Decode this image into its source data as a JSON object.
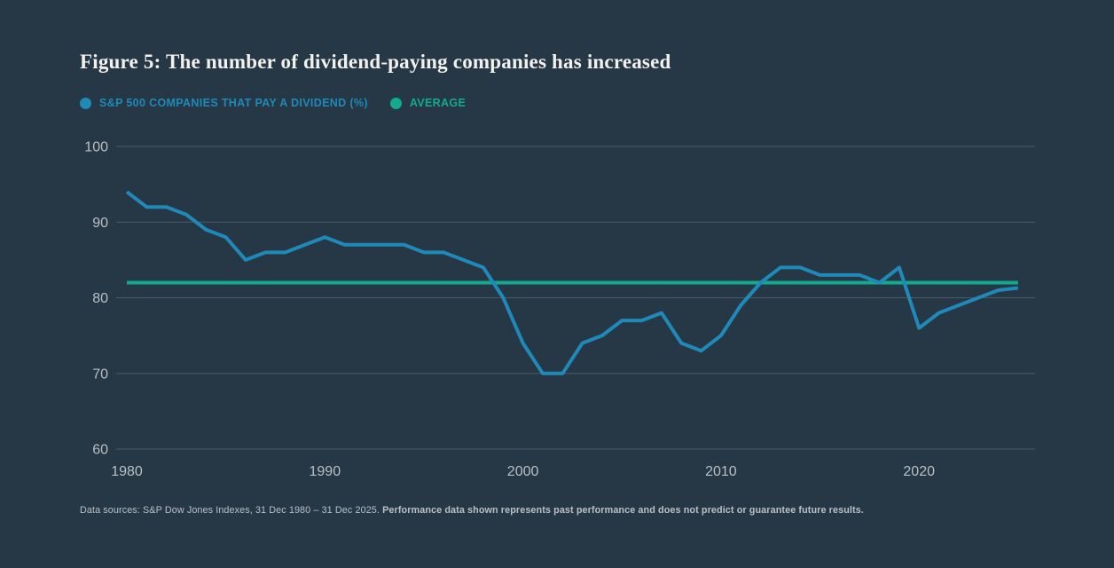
{
  "title": "Figure 5: The number of dividend-paying companies has increased",
  "legend": [
    {
      "label": "S&P 500 COMPANIES THAT PAY A DIVIDEND (%)",
      "color": "#1f8ab9"
    },
    {
      "label": "AVERAGE",
      "color": "#13ab8f"
    }
  ],
  "footer": {
    "normal": "Data sources: S&P Dow Jones Indexes, 31 Dec 1980 – 31 Dec 2025. ",
    "bold": "Performance data shown represents past performance and does not predict or guarantee future results."
  },
  "colors": {
    "background": "#263745",
    "grid": "#4c5a65",
    "tick_label": "#b9c0c4",
    "title": "#f2f1ed",
    "dividend_line": "#1f8ab9",
    "average_line": "#13ab8f"
  },
  "chart_data": {
    "type": "line",
    "title": "Figure 5: The number of dividend-paying companies has increased",
    "xlabel": "",
    "ylabel": "",
    "ylim": [
      60,
      100
    ],
    "xlim": [
      1980,
      2025
    ],
    "grid": "horizontal",
    "legend_position": "top-left",
    "yticks": [
      100,
      90,
      80,
      70,
      60
    ],
    "xticks": [
      1980,
      1990,
      2000,
      2010,
      2020
    ],
    "x": [
      1980,
      1981,
      1982,
      1983,
      1984,
      1985,
      1986,
      1987,
      1988,
      1989,
      1990,
      1991,
      1992,
      1993,
      1994,
      1995,
      1996,
      1997,
      1998,
      1999,
      2000,
      2001,
      2002,
      2003,
      2004,
      2005,
      2006,
      2007,
      2008,
      2009,
      2010,
      2011,
      2012,
      2013,
      2014,
      2015,
      2016,
      2017,
      2018,
      2019,
      2020,
      2021,
      2022,
      2023,
      2024,
      2025
    ],
    "series": [
      {
        "name": "S&P 500 companies that pay a dividend (%)",
        "color": "#1f8ab9",
        "values": [
          94,
          92,
          92,
          91,
          89,
          88,
          85,
          86,
          86,
          87,
          88,
          87,
          87,
          87,
          87,
          86,
          86,
          85,
          84,
          80,
          74,
          70,
          70,
          74,
          75,
          77,
          77,
          78,
          74,
          73,
          75,
          79,
          82,
          84,
          84,
          83,
          83,
          83,
          82,
          84,
          76,
          78,
          79,
          80,
          81,
          81.3
        ]
      },
      {
        "name": "Average",
        "color": "#13ab8f",
        "type": "horizontal-line",
        "value": 82
      }
    ]
  }
}
